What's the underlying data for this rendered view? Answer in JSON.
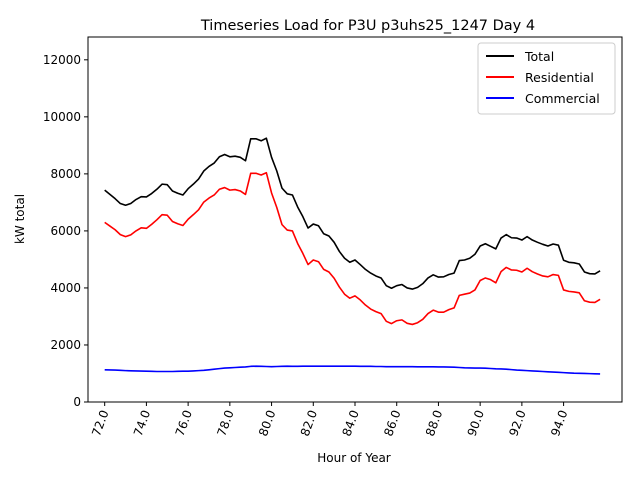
{
  "chart_data": {
    "type": "line",
    "title": "Timeseries Load for P3U p3uhs25_1247  Day 4",
    "xlabel": "Hour of Year",
    "ylabel": "kW total",
    "xlim": [
      71.2,
      96.8
    ],
    "ylim": [
      0,
      12800
    ],
    "xticks": [
      72,
      74,
      76,
      78,
      80,
      82,
      84,
      86,
      88,
      90,
      92,
      94
    ],
    "xtick_labels": [
      "72.0",
      "74.0",
      "76.0",
      "78.0",
      "80.0",
      "82.0",
      "84.0",
      "86.0",
      "88.0",
      "90.0",
      "92.0",
      "94.0"
    ],
    "yticks": [
      0,
      2000,
      4000,
      6000,
      8000,
      10000,
      12000
    ],
    "ytick_labels": [
      "0",
      "2000",
      "4000",
      "6000",
      "8000",
      "10000",
      "12000"
    ],
    "legend_position": "top-right",
    "grid": false,
    "x": [
      72.0,
      72.25,
      72.5,
      72.75,
      73.0,
      73.25,
      73.5,
      73.75,
      74.0,
      74.25,
      74.5,
      74.75,
      75.0,
      75.25,
      75.5,
      75.75,
      76.0,
      76.25,
      76.5,
      76.75,
      77.0,
      77.25,
      77.5,
      77.75,
      78.0,
      78.25,
      78.5,
      78.75,
      79.0,
      79.25,
      79.5,
      79.75,
      80.0,
      80.25,
      80.5,
      80.75,
      81.0,
      81.25,
      81.5,
      81.75,
      82.0,
      82.25,
      82.5,
      82.75,
      83.0,
      83.25,
      83.5,
      83.75,
      84.0,
      84.25,
      84.5,
      84.75,
      85.0,
      85.25,
      85.5,
      85.75,
      86.0,
      86.25,
      86.5,
      86.75,
      87.0,
      87.25,
      87.5,
      87.75,
      88.0,
      88.25,
      88.5,
      88.75,
      89.0,
      89.25,
      89.5,
      89.75,
      90.0,
      90.25,
      90.5,
      90.75,
      91.0,
      91.25,
      91.5,
      91.75,
      92.0,
      92.25,
      92.5,
      92.75,
      93.0,
      93.25,
      93.5,
      93.75,
      94.0,
      94.25,
      94.5,
      94.75,
      95.0,
      95.25,
      95.5,
      95.75
    ],
    "series": [
      {
        "name": "Total",
        "color": "#000000",
        "values": [
          7430,
          7280,
          7130,
          6960,
          6900,
          6960,
          7100,
          7200,
          7190,
          7310,
          7460,
          7640,
          7620,
          7400,
          7320,
          7260,
          7480,
          7640,
          7820,
          8100,
          8260,
          8380,
          8600,
          8680,
          8600,
          8620,
          8580,
          8460,
          9230,
          9230,
          9160,
          9250,
          8580,
          8100,
          7500,
          7300,
          7260,
          6840,
          6500,
          6100,
          6240,
          6180,
          5900,
          5820,
          5600,
          5280,
          5040,
          4900,
          4980,
          4820,
          4650,
          4520,
          4420,
          4350,
          4080,
          3990,
          4080,
          4120,
          4000,
          3960,
          4020,
          4150,
          4350,
          4460,
          4380,
          4390,
          4470,
          4520,
          4960,
          4980,
          5040,
          5180,
          5470,
          5550,
          5460,
          5370,
          5750,
          5870,
          5760,
          5750,
          5680,
          5800,
          5680,
          5600,
          5530,
          5470,
          5540,
          5500,
          4970,
          4900,
          4880,
          4840,
          4560,
          4500,
          4490,
          4600
        ]
      },
      {
        "name": "Residential",
        "color": "#ff0000",
        "values": [
          6300,
          6170,
          6040,
          5870,
          5800,
          5860,
          6000,
          6110,
          6090,
          6230,
          6390,
          6570,
          6550,
          6330,
          6250,
          6190,
          6410,
          6570,
          6740,
          7010,
          7150,
          7260,
          7460,
          7520,
          7430,
          7450,
          7400,
          7280,
          8020,
          8020,
          7960,
          8040,
          7330,
          6820,
          6220,
          6030,
          6000,
          5560,
          5210,
          4820,
          4980,
          4920,
          4650,
          4560,
          4340,
          4030,
          3780,
          3640,
          3720,
          3580,
          3400,
          3260,
          3170,
          3100,
          2830,
          2750,
          2850,
          2880,
          2760,
          2720,
          2780,
          2900,
          3100,
          3220,
          3150,
          3150,
          3240,
          3300,
          3740,
          3780,
          3820,
          3930,
          4260,
          4350,
          4290,
          4180,
          4570,
          4720,
          4630,
          4620,
          4560,
          4690,
          4570,
          4490,
          4420,
          4390,
          4470,
          4440,
          3930,
          3880,
          3860,
          3830,
          3550,
          3500,
          3490,
          3600
        ]
      },
      {
        "name": "Commercial",
        "color": "#0000ff",
        "values": [
          1130,
          1125,
          1120,
          1110,
          1100,
          1095,
          1090,
          1085,
          1080,
          1075,
          1070,
          1070,
          1070,
          1070,
          1075,
          1080,
          1080,
          1090,
          1100,
          1110,
          1130,
          1150,
          1170,
          1190,
          1200,
          1210,
          1220,
          1230,
          1250,
          1255,
          1250,
          1245,
          1240,
          1245,
          1250,
          1255,
          1250,
          1250,
          1255,
          1255,
          1255,
          1255,
          1255,
          1255,
          1255,
          1255,
          1255,
          1255,
          1255,
          1250,
          1250,
          1250,
          1245,
          1245,
          1240,
          1240,
          1240,
          1240,
          1240,
          1240,
          1235,
          1235,
          1235,
          1235,
          1230,
          1230,
          1225,
          1220,
          1210,
          1200,
          1195,
          1190,
          1190,
          1185,
          1175,
          1165,
          1160,
          1150,
          1135,
          1120,
          1110,
          1100,
          1090,
          1080,
          1070,
          1060,
          1050,
          1040,
          1030,
          1020,
          1010,
          1005,
          1000,
          995,
          990,
          985
        ]
      }
    ]
  }
}
